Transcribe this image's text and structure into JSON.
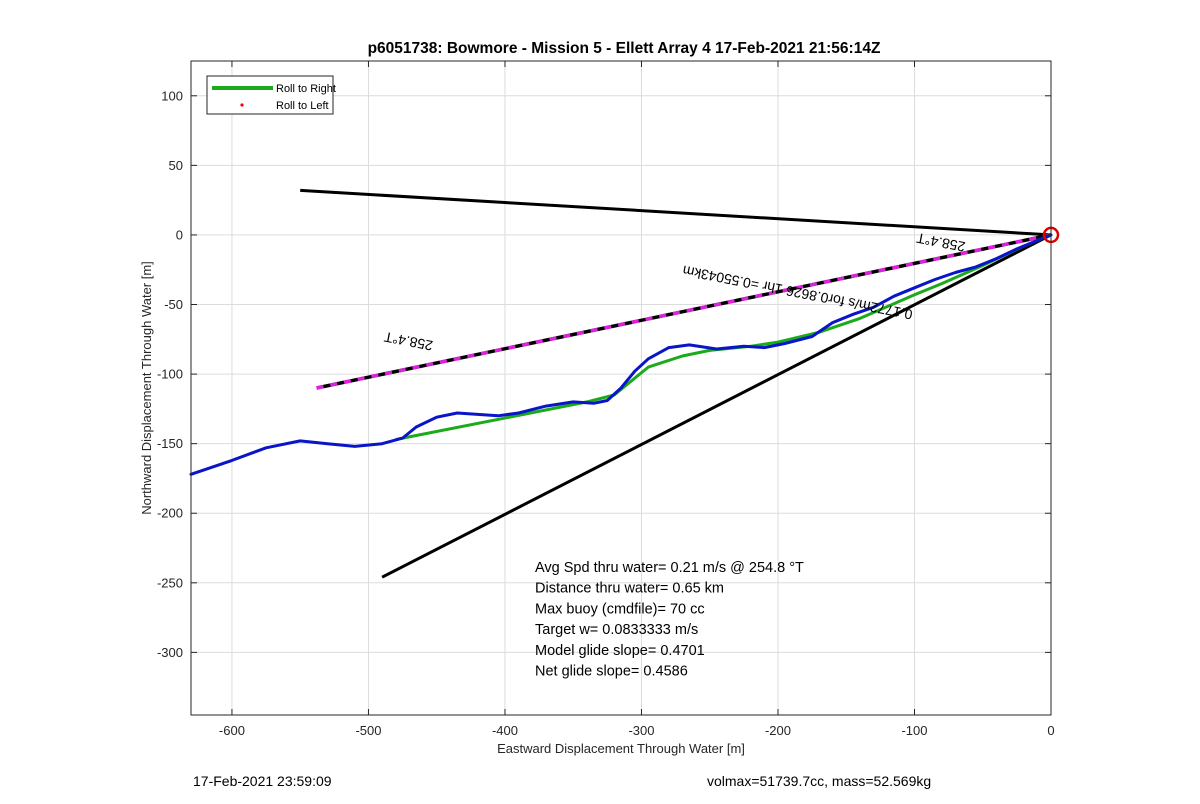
{
  "chart_data": {
    "type": "line",
    "title": "p6051738: Bowmore - Mission 5 - Ellett Array 4 17-Feb-2021 21:56:14Z",
    "xlabel": "Eastward Displacement Through Water [m]",
    "ylabel": "Northward Displacement Through Water [m]",
    "xlim": [
      -630,
      0
    ],
    "ylim": [
      -345,
      125
    ],
    "xticks": [
      -600,
      -500,
      -400,
      -300,
      -200,
      -100,
      0
    ],
    "yticks": [
      100,
      50,
      0,
      -50,
      -100,
      -150,
      -200,
      -250,
      -300
    ],
    "xtick_labels": [
      "-600",
      "-500",
      "-400",
      "-300",
      "-200",
      "-100",
      "0"
    ],
    "ytick_labels": [
      "100",
      "50",
      "0",
      "-50",
      "-100",
      "-150",
      "-200",
      "-250",
      "-300"
    ],
    "grid": true,
    "legend_position": "top-left",
    "legend": [
      {
        "label": "Roll to Right",
        "style": "line",
        "color": "#1aaa1a"
      },
      {
        "label": "Roll to Left",
        "style": "dot",
        "color": "#ff0000"
      }
    ],
    "series": [
      {
        "name": "Roll to Right",
        "color": "#1aaa1a",
        "x": [
          -480,
          -340,
          -320,
          -295,
          -270,
          -250,
          -240,
          -220,
          -200,
          -170,
          -140,
          -100,
          -80,
          -50,
          -20,
          0
        ],
        "y": [
          -147,
          -120,
          -115,
          -95,
          -87,
          -83,
          -82,
          -80,
          -77,
          -70,
          -60,
          -43,
          -35,
          -22,
          -8,
          0
        ]
      }
    ],
    "track": {
      "color": "#0a14c8",
      "x": [
        -630,
        -600,
        -575,
        -550,
        -530,
        -510,
        -490,
        -475,
        -465,
        -450,
        -435,
        -420,
        -405,
        -390,
        -370,
        -350,
        -335,
        -325,
        -315,
        -305,
        -295,
        -280,
        -265,
        -245,
        -225,
        -210,
        -195,
        -175,
        -160,
        -145,
        -130,
        -115,
        -100,
        -85,
        -70,
        -55,
        -40,
        -25,
        -10,
        0
      ],
      "y": [
        -172,
        -162,
        -153,
        -148,
        -150,
        -152,
        -150,
        -146,
        -138,
        -131,
        -128,
        -129,
        -130,
        -128,
        -123,
        -120,
        -121,
        -119,
        -110,
        -98,
        -89,
        -81,
        -79,
        -82,
        -80,
        -81,
        -78,
        -73,
        -63,
        -57,
        -52,
        -44,
        -38,
        -32,
        -27,
        -23,
        -17,
        -10,
        -4,
        0
      ]
    },
    "reference_lines": [
      {
        "color": "#000000",
        "x": [
          -550,
          0
        ],
        "y": [
          32,
          0
        ]
      },
      {
        "color": "#000000",
        "x": [
          -490,
          0
        ],
        "y": [
          -246,
          0
        ]
      }
    ],
    "heading_line": {
      "color_dash": "#dd22dd",
      "color": "#000000",
      "x": [
        -538,
        0
      ],
      "y": [
        -110,
        0
      ]
    },
    "marker": {
      "x": 0,
      "y": 0,
      "color": "#dd0000"
    },
    "annotations": [
      {
        "text": "258.4°T",
        "x": -470,
        "y": -73,
        "angle": 191
      },
      {
        "text": "258.4°T",
        "x": -80,
        "y": -2,
        "angle": 191
      },
      {
        "text": "0.1772m/s for0.8626 1hr =0.55043km",
        "x": -185,
        "y": -38,
        "angle": 191
      }
    ],
    "stats": [
      "Avg Spd thru water=  0.21 m/s @ 254.8 °T",
      "Distance thru water=  0.65 km",
      "Max buoy (cmdfile)= 70 cc",
      "Target w= 0.0833333 m/s",
      "Model glide slope= 0.4701",
      "Net glide slope= 0.4586"
    ]
  },
  "footer": {
    "left": "17-Feb-2021 23:59:09",
    "right": "volmax=51739.7cc, mass=52.569kg"
  }
}
